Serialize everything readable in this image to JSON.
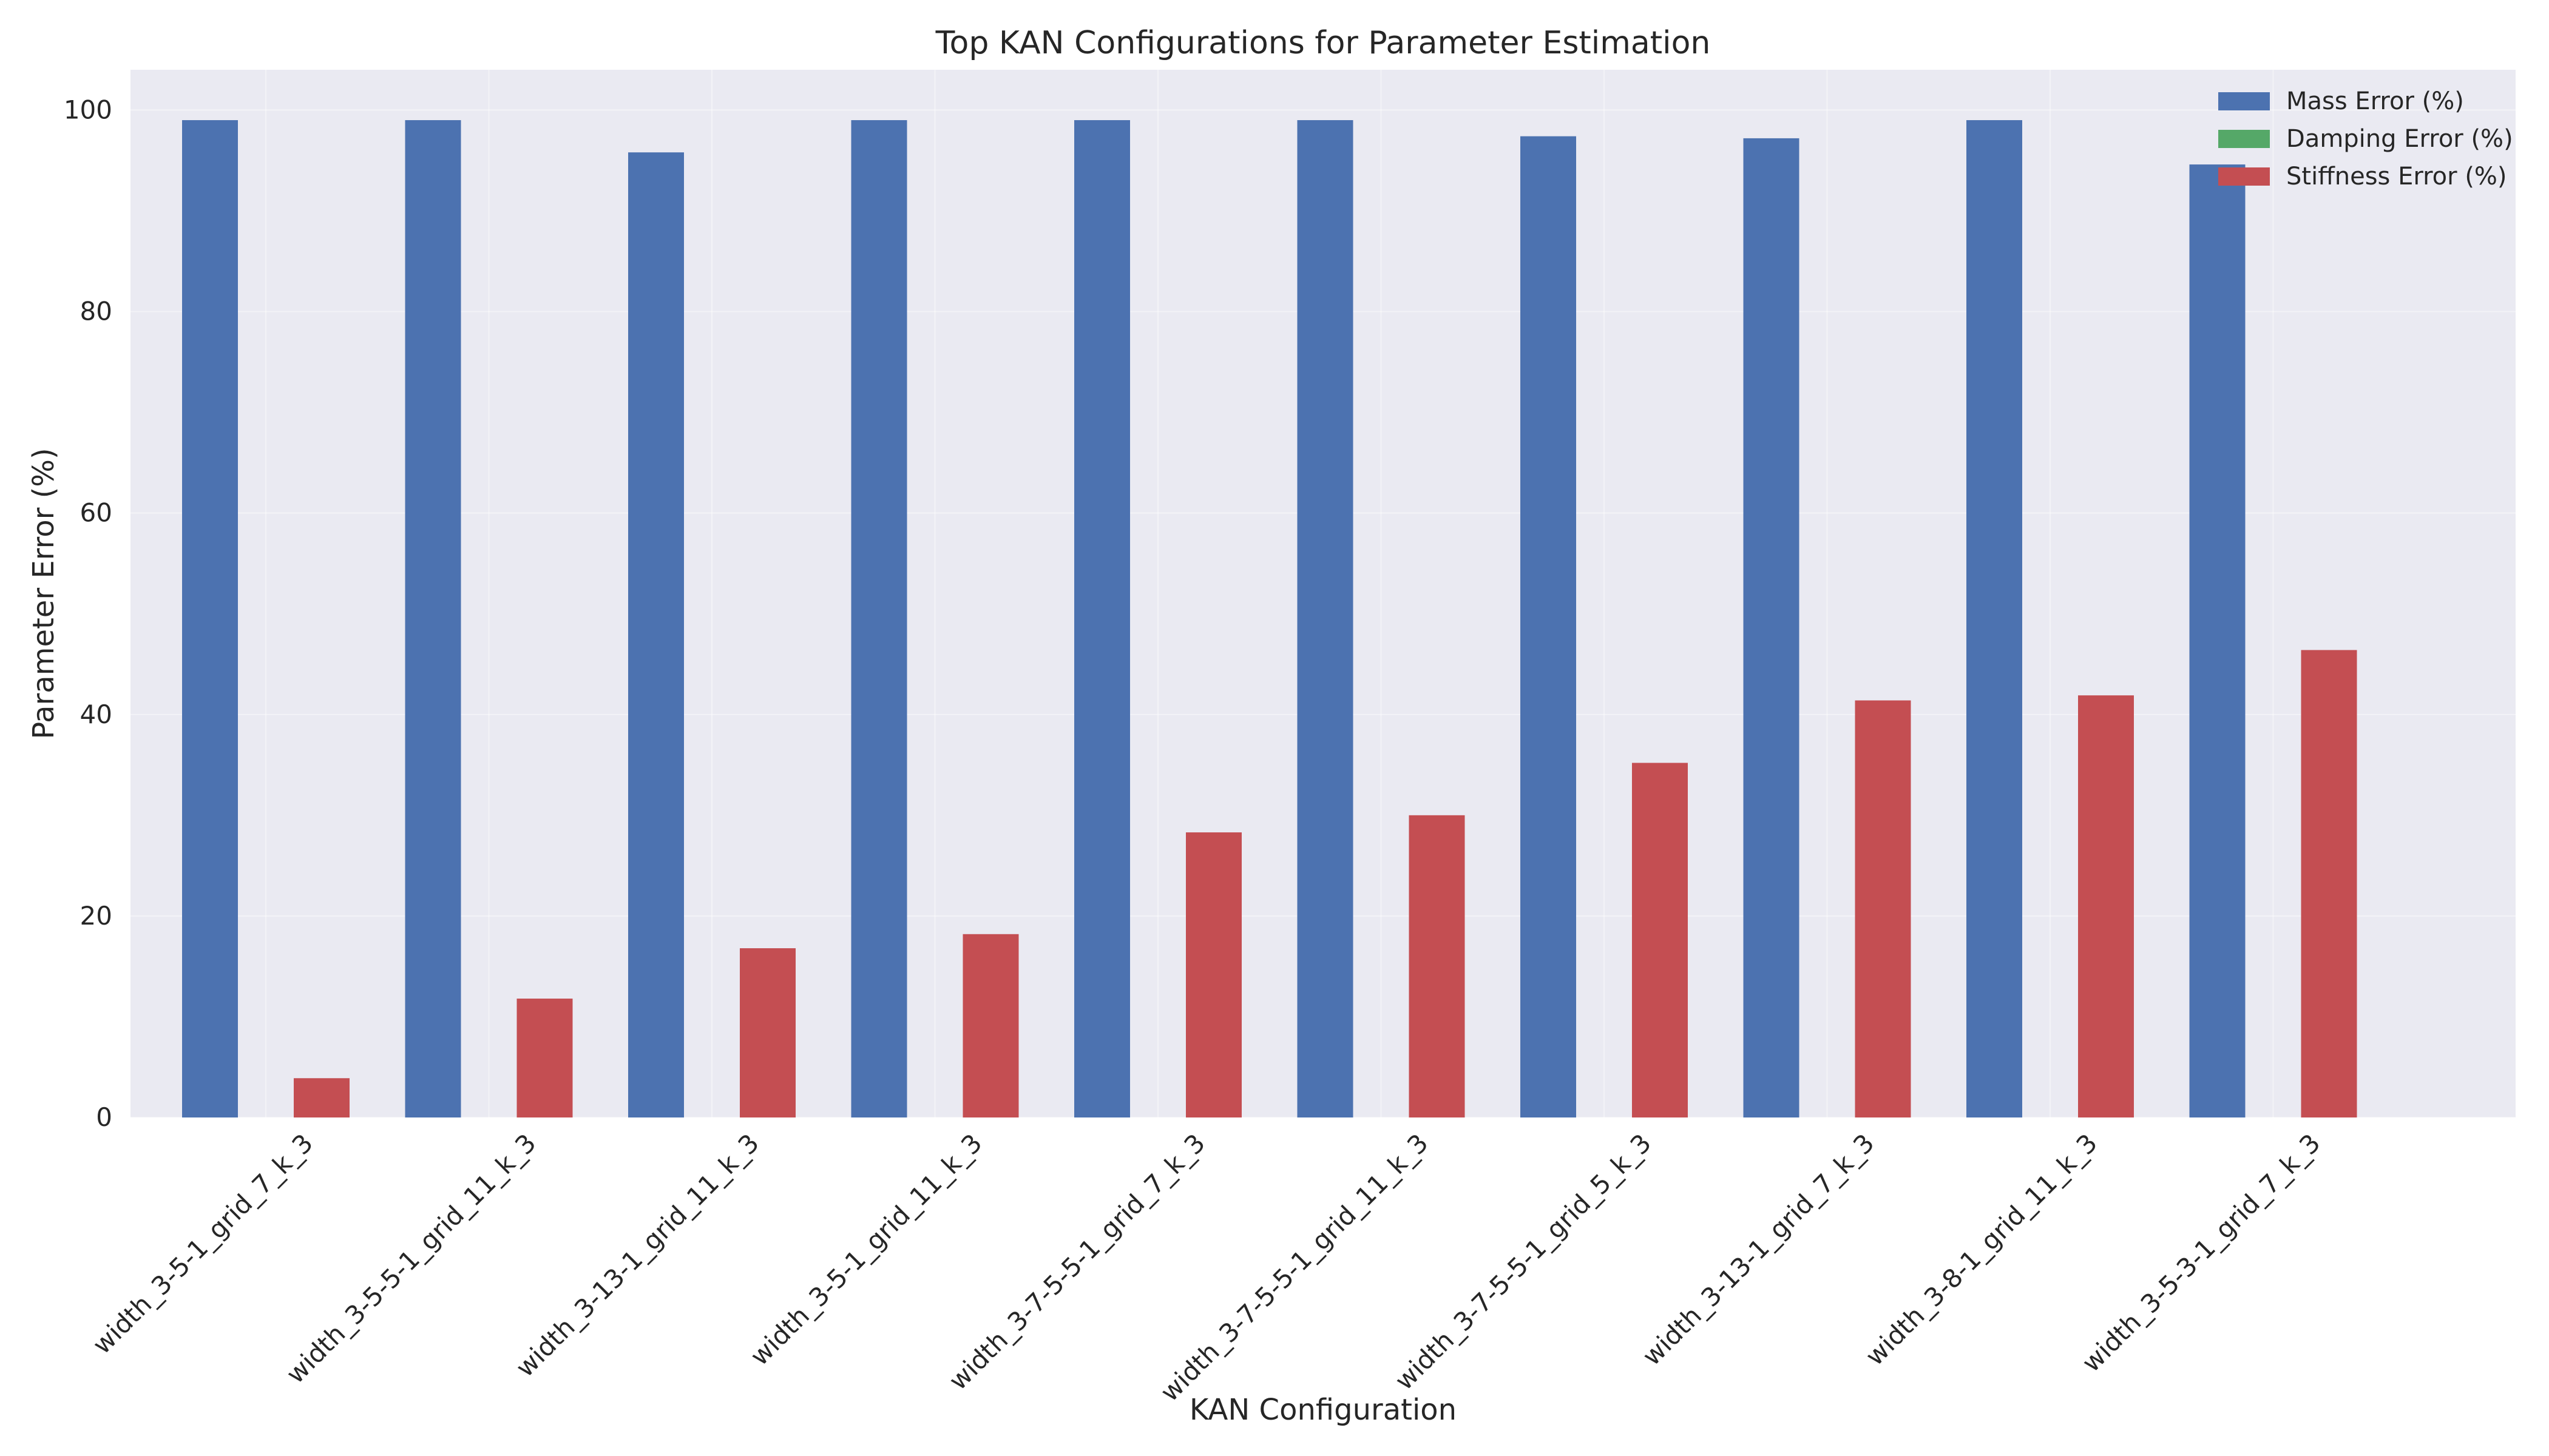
{
  "chart_data": {
    "type": "bar",
    "title": "Top KAN Configurations for Parameter Estimation",
    "xlabel": "KAN Configuration",
    "ylabel": "Parameter Error (%)",
    "ylim": [
      0,
      104
    ],
    "yticks": [
      0,
      20,
      40,
      60,
      80,
      100
    ],
    "grid": true,
    "legend_position": "top-right",
    "categories": [
      "width_3-5-1_grid_7_k_3",
      "width_3-5-5-1_grid_11_k_3",
      "width_3-13-1_grid_11_k_3",
      "width_3-5-1_grid_11_k_3",
      "width_3-7-5-5-1_grid_7_k_3",
      "width_3-7-5-5-1_grid_11_k_3",
      "width_3-7-5-5-1_grid_5_k_3",
      "width_3-13-1_grid_7_k_3",
      "width_3-8-1_grid_11_k_3",
      "width_3-5-3-1_grid_7_k_3"
    ],
    "series": [
      {
        "name": "Mass Error (%)",
        "color": "#4c72b0",
        "values": [
          99.0,
          99.0,
          95.8,
          99.0,
          99.0,
          99.0,
          97.4,
          97.2,
          99.0,
          94.6
        ]
      },
      {
        "name": "Damping Error (%)",
        "color": "#55a868",
        "values": [
          0,
          0,
          0,
          0,
          0,
          0,
          0,
          0,
          0,
          0
        ]
      },
      {
        "name": "Stiffness Error (%)",
        "color": "#c44e52",
        "values": [
          3.9,
          11.8,
          16.8,
          18.2,
          28.3,
          30.0,
          35.2,
          41.4,
          41.9,
          46.4
        ]
      }
    ]
  }
}
